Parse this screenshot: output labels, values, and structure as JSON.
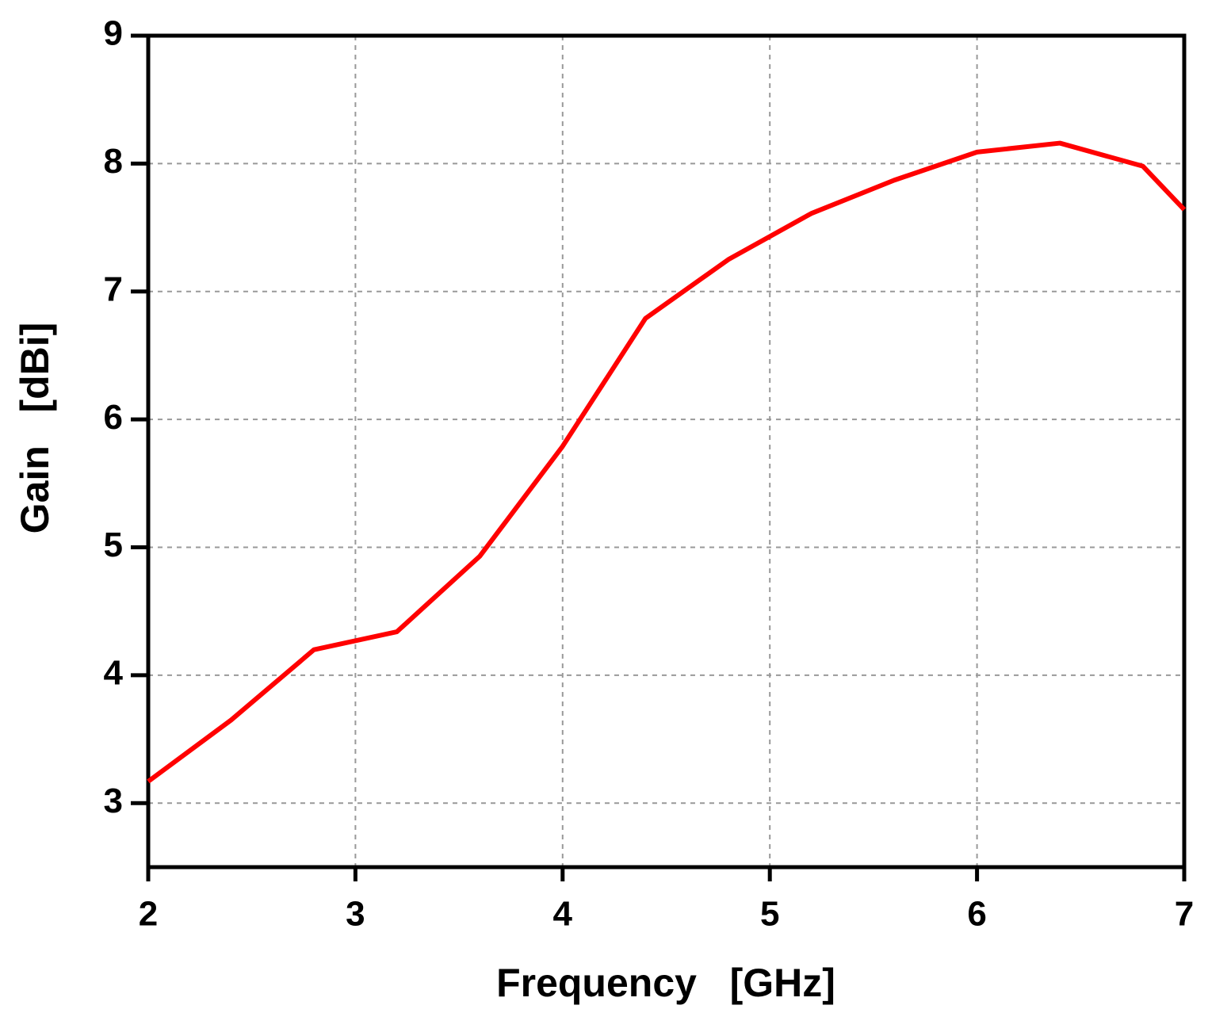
{
  "chart_data": {
    "type": "line",
    "x_label": "Frequency   [GHz]",
    "y_label": "Gain   [dBi]",
    "x": [
      2,
      2.4,
      2.8,
      3.2,
      3.6,
      4.0,
      4.4,
      4.8,
      5.2,
      5.6,
      6.0,
      6.4,
      6.8,
      7.0
    ],
    "series": [
      {
        "name": "Gain",
        "color": "#ff0000",
        "values": [
          3.17,
          3.65,
          4.2,
          4.34,
          4.93,
          5.79,
          6.79,
          7.25,
          7.61,
          7.87,
          8.09,
          8.16,
          7.98,
          7.64
        ]
      }
    ],
    "xlim": [
      2,
      7
    ],
    "xticks": [
      2,
      3,
      4,
      5,
      6,
      7
    ],
    "ylim": [
      2.5,
      9
    ],
    "yticks": [
      3,
      4,
      5,
      6,
      7,
      8,
      9
    ],
    "grid": true
  }
}
